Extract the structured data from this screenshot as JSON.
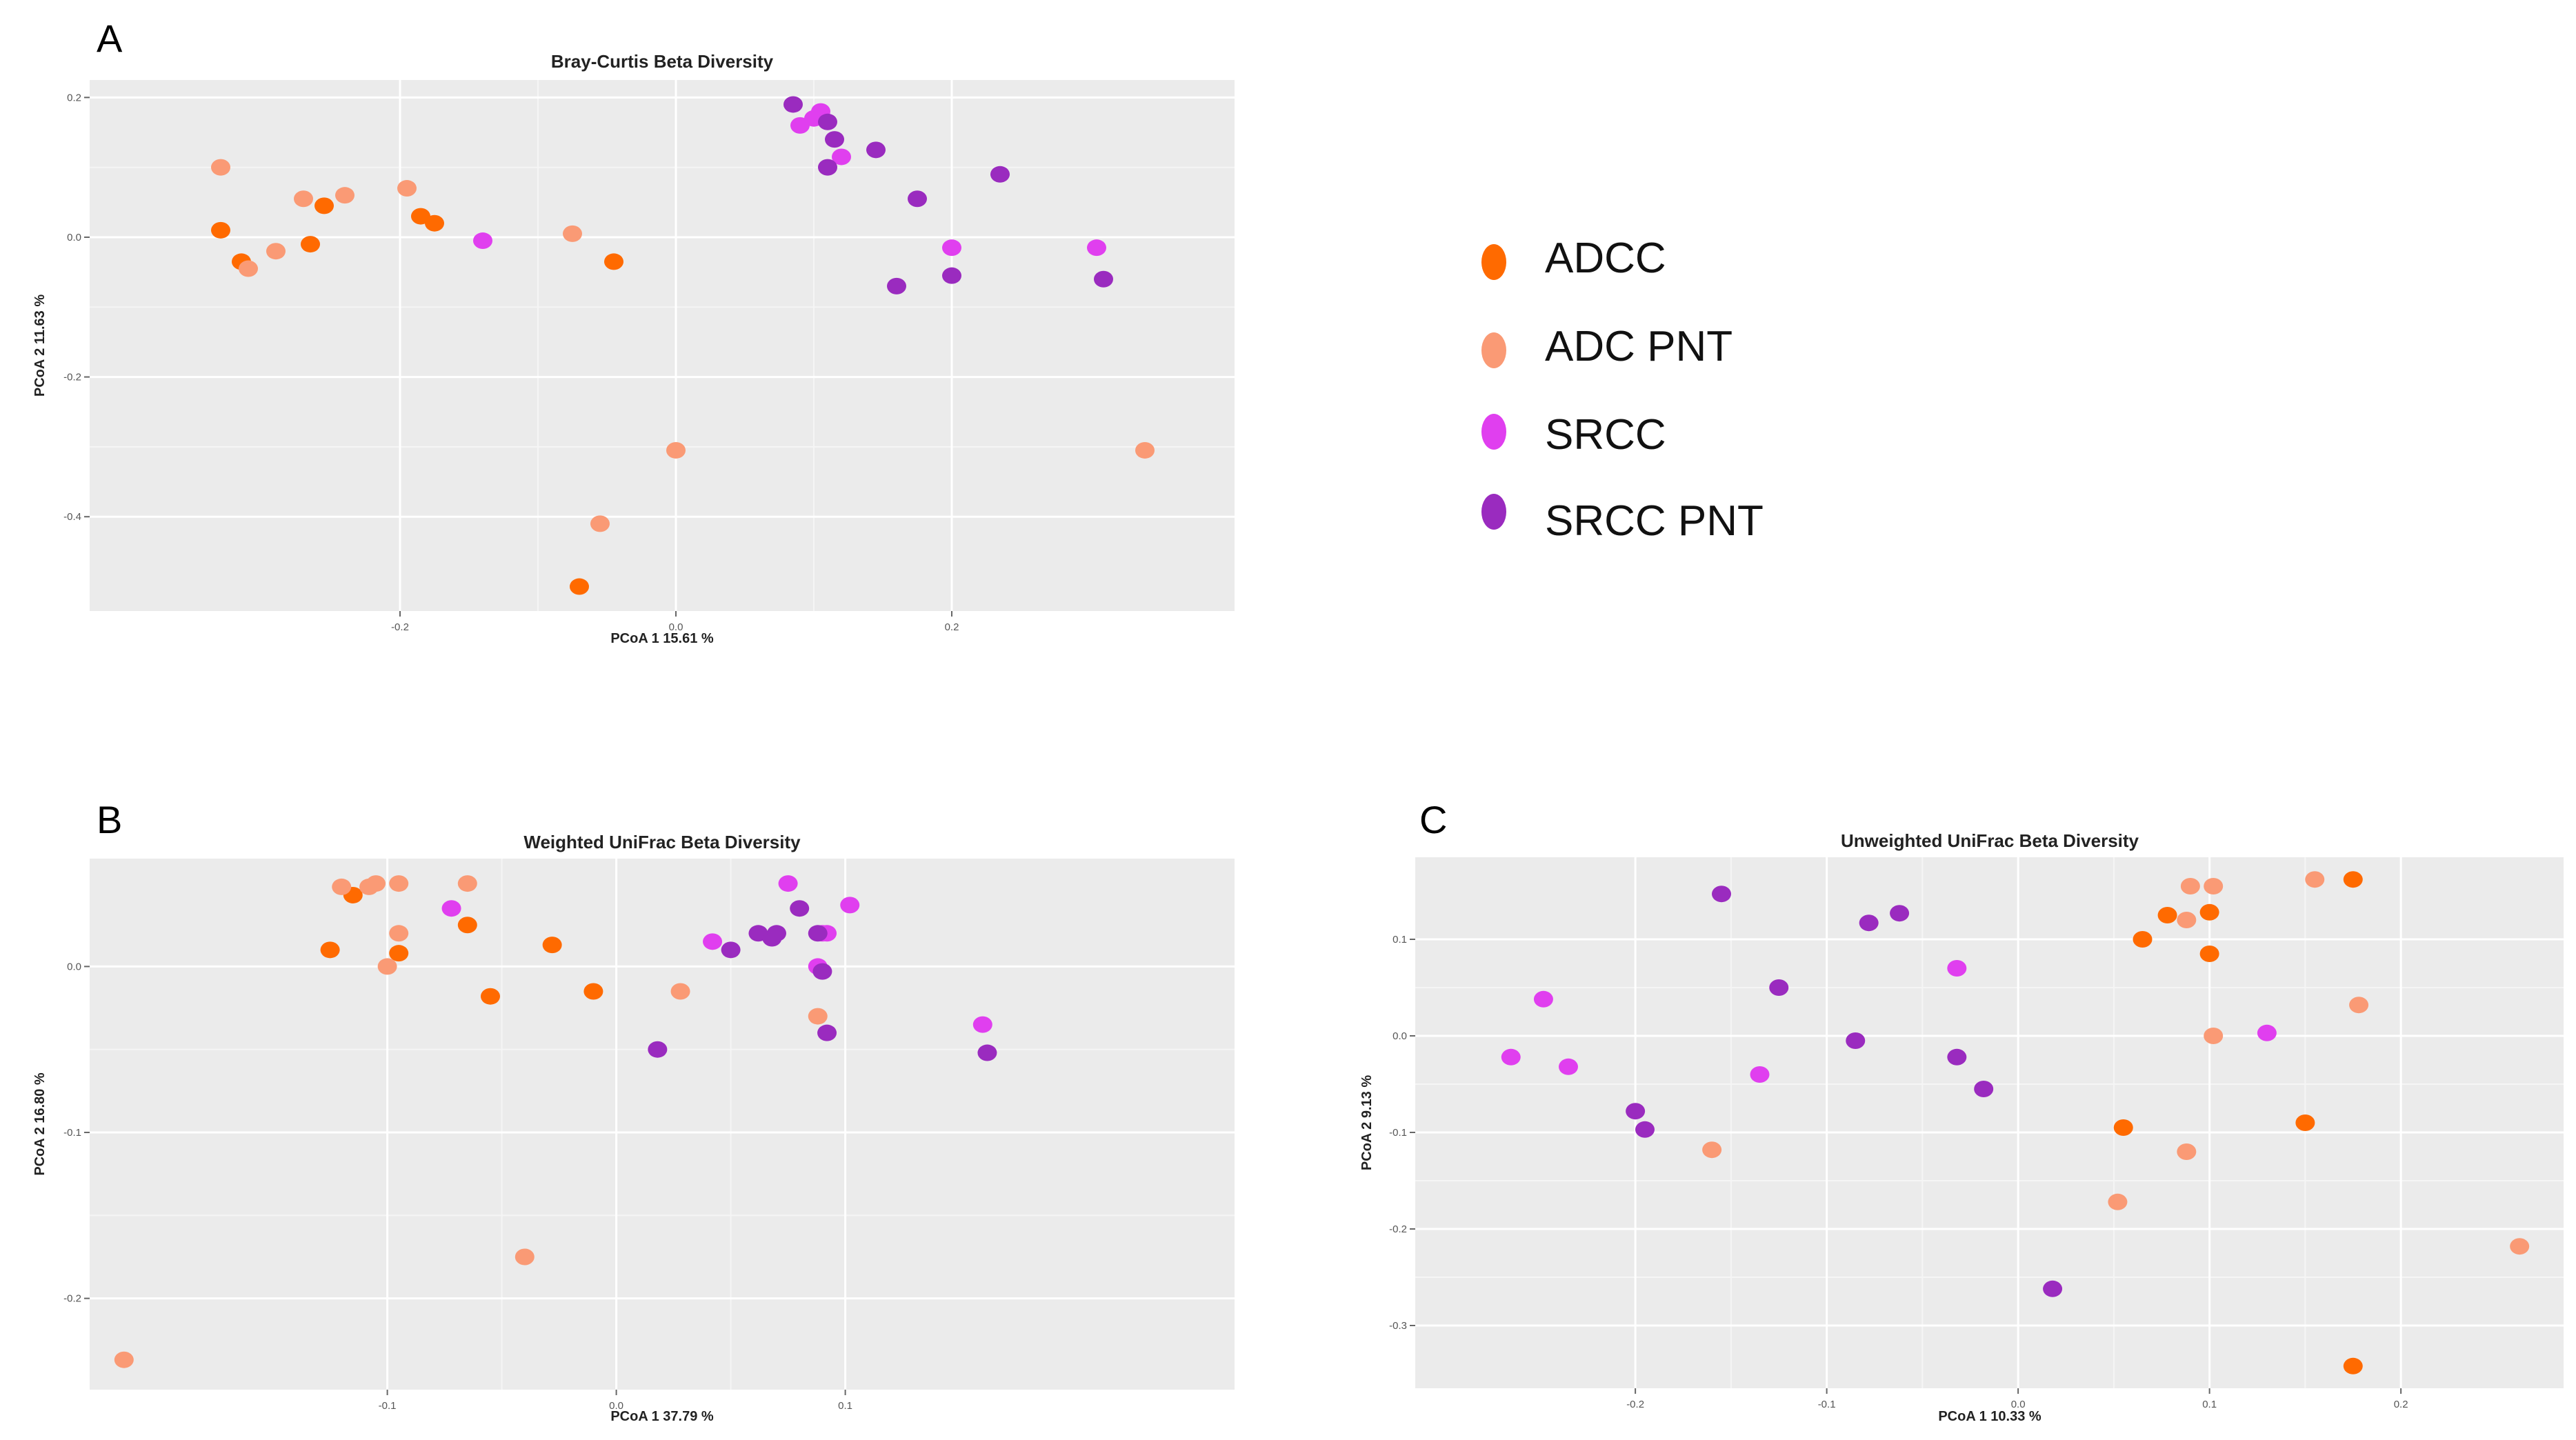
{
  "legend": {
    "items": [
      {
        "label": "ADCC",
        "color": "#FF6A00"
      },
      {
        "label": "ADC PNT",
        "color": "#FA9A75"
      },
      {
        "label": "SRCC",
        "color": "#E03FEF"
      },
      {
        "label": "SRCC PNT",
        "color": "#9A2BBF"
      }
    ]
  },
  "chart_data": [
    {
      "panel": "A",
      "type": "scatter",
      "title": "Bray-Curtis Beta Diversity",
      "xlabel": "PCoA 1  15.61 %",
      "ylabel": "PCoA 2 11.63 %",
      "xlim": [
        -0.425,
        0.405
      ],
      "ylim": [
        -0.535,
        0.225
      ],
      "xticks": [
        -0.2,
        0.0,
        0.2
      ],
      "xtick_labels": [
        "-0.2",
        "0.0",
        "0.2"
      ],
      "yticks": [
        0.2,
        0.0,
        -0.2,
        -0.4
      ],
      "ytick_labels": [
        "0.2",
        "0.0",
        "-0.2",
        "-0.4"
      ],
      "series": [
        {
          "name": "ADCC",
          "points": [
            [
              -0.33,
              0.01
            ],
            [
              -0.315,
              -0.035
            ],
            [
              -0.265,
              -0.01
            ],
            [
              -0.255,
              0.045
            ],
            [
              -0.185,
              0.03
            ],
            [
              -0.175,
              0.02
            ],
            [
              -0.045,
              -0.035
            ],
            [
              -0.07,
              -0.5
            ]
          ]
        },
        {
          "name": "ADC PNT",
          "points": [
            [
              -0.33,
              0.1
            ],
            [
              -0.31,
              -0.045
            ],
            [
              -0.29,
              -0.02
            ],
            [
              -0.27,
              0.055
            ],
            [
              -0.24,
              0.06
            ],
            [
              -0.195,
              0.07
            ],
            [
              -0.075,
              0.005
            ],
            [
              0.0,
              -0.305
            ],
            [
              -0.055,
              -0.41
            ],
            [
              0.34,
              -0.305
            ]
          ]
        },
        {
          "name": "SRCC",
          "points": [
            [
              -0.14,
              -0.005
            ],
            [
              0.09,
              0.16
            ],
            [
              0.1,
              0.17
            ],
            [
              0.105,
              0.18
            ],
            [
              0.12,
              0.115
            ],
            [
              0.2,
              -0.015
            ],
            [
              0.305,
              -0.015
            ]
          ]
        },
        {
          "name": "SRCC PNT",
          "points": [
            [
              0.085,
              0.19
            ],
            [
              0.11,
              0.165
            ],
            [
              0.115,
              0.14
            ],
            [
              0.11,
              0.1
            ],
            [
              0.145,
              0.125
            ],
            [
              0.175,
              0.055
            ],
            [
              0.16,
              -0.07
            ],
            [
              0.2,
              -0.055
            ],
            [
              0.235,
              0.09
            ],
            [
              0.31,
              -0.06
            ]
          ]
        }
      ]
    },
    {
      "panel": "B",
      "type": "scatter",
      "title": "Weighted UniFrac Beta Diversity",
      "xlabel": "PCoA 1  37.79 %",
      "ylabel": "PCoA 2 16.80 %",
      "xlim": [
        -0.23,
        0.27
      ],
      "ylim": [
        -0.255,
        0.065
      ],
      "xticks": [
        -0.1,
        0.0,
        0.1
      ],
      "xtick_labels": [
        "-0.1",
        "0.0",
        "0.1"
      ],
      "yticks": [
        0.0,
        -0.1,
        -0.2
      ],
      "ytick_labels": [
        "0.0",
        "-0.1",
        "-0.2"
      ],
      "series": [
        {
          "name": "ADCC",
          "points": [
            [
              -0.125,
              0.01
            ],
            [
              -0.115,
              0.043
            ],
            [
              -0.095,
              0.008
            ],
            [
              -0.065,
              0.025
            ],
            [
              -0.055,
              -0.018
            ],
            [
              -0.028,
              0.013
            ],
            [
              -0.01,
              -0.015
            ]
          ]
        },
        {
          "name": "ADC PNT",
          "points": [
            [
              -0.215,
              -0.237
            ],
            [
              -0.12,
              0.048
            ],
            [
              -0.108,
              0.048
            ],
            [
              -0.105,
              0.05
            ],
            [
              -0.1,
              0.0
            ],
            [
              -0.095,
              0.05
            ],
            [
              -0.095,
              0.02
            ],
            [
              -0.065,
              0.05
            ],
            [
              -0.04,
              -0.175
            ],
            [
              0.028,
              -0.015
            ],
            [
              0.088,
              -0.03
            ]
          ]
        },
        {
          "name": "SRCC",
          "points": [
            [
              -0.072,
              0.035
            ],
            [
              0.042,
              0.015
            ],
            [
              0.075,
              0.05
            ],
            [
              0.088,
              0.0
            ],
            [
              0.09,
              0.02
            ],
            [
              0.092,
              0.02
            ],
            [
              0.102,
              0.037
            ],
            [
              0.16,
              -0.035
            ]
          ]
        },
        {
          "name": "SRCC PNT",
          "points": [
            [
              0.018,
              -0.05
            ],
            [
              0.05,
              0.01
            ],
            [
              0.062,
              0.02
            ],
            [
              0.068,
              0.017
            ],
            [
              0.07,
              0.02
            ],
            [
              0.08,
              0.035
            ],
            [
              0.088,
              0.02
            ],
            [
              0.09,
              -0.003
            ],
            [
              0.092,
              -0.04
            ],
            [
              0.162,
              -0.052
            ]
          ]
        }
      ]
    },
    {
      "panel": "C",
      "type": "scatter",
      "title": "Unweighted UniFrac Beta Diversity",
      "xlabel": "PCoA 1  10.33 %",
      "ylabel": "PCoA 2 9.13 %",
      "xlim": [
        -0.315,
        0.285
      ],
      "ylim": [
        -0.365,
        0.185
      ],
      "xticks": [
        -0.2,
        -0.1,
        0.0,
        0.1,
        0.2
      ],
      "xtick_labels": [
        "-0.2",
        "-0.1",
        "0.0",
        "0.1",
        "0.2"
      ],
      "yticks": [
        0.1,
        0.0,
        -0.1,
        -0.2,
        -0.3
      ],
      "ytick_labels": [
        "0.1",
        "0.0",
        "-0.1",
        "-0.2",
        "-0.3"
      ],
      "series": [
        {
          "name": "ADCC",
          "points": [
            [
              0.065,
              0.1
            ],
            [
              0.078,
              0.125
            ],
            [
              0.1,
              0.128
            ],
            [
              0.1,
              0.085
            ],
            [
              0.175,
              0.162
            ],
            [
              0.055,
              -0.095
            ],
            [
              0.15,
              -0.09
            ],
            [
              0.175,
              -0.342
            ]
          ]
        },
        {
          "name": "ADC PNT",
          "points": [
            [
              0.09,
              0.155
            ],
            [
              0.102,
              0.155
            ],
            [
              0.088,
              0.12
            ],
            [
              0.155,
              0.162
            ],
            [
              0.178,
              0.032
            ],
            [
              0.102,
              0.0
            ],
            [
              0.088,
              -0.12
            ],
            [
              0.052,
              -0.172
            ],
            [
              -0.16,
              -0.118
            ],
            [
              0.262,
              -0.218
            ]
          ]
        },
        {
          "name": "SRCC",
          "points": [
            [
              -0.265,
              -0.022
            ],
            [
              -0.248,
              0.038
            ],
            [
              -0.235,
              -0.032
            ],
            [
              -0.135,
              -0.04
            ],
            [
              -0.032,
              0.07
            ],
            [
              0.13,
              0.003
            ]
          ]
        },
        {
          "name": "SRCC PNT",
          "points": [
            [
              -0.155,
              0.147
            ],
            [
              -0.125,
              0.05
            ],
            [
              -0.2,
              -0.078
            ],
            [
              -0.195,
              -0.097
            ],
            [
              -0.085,
              -0.005
            ],
            [
              -0.078,
              0.117
            ],
            [
              -0.062,
              0.127
            ],
            [
              -0.032,
              -0.022
            ],
            [
              -0.018,
              -0.055
            ],
            [
              0.018,
              -0.262
            ]
          ]
        }
      ]
    }
  ]
}
